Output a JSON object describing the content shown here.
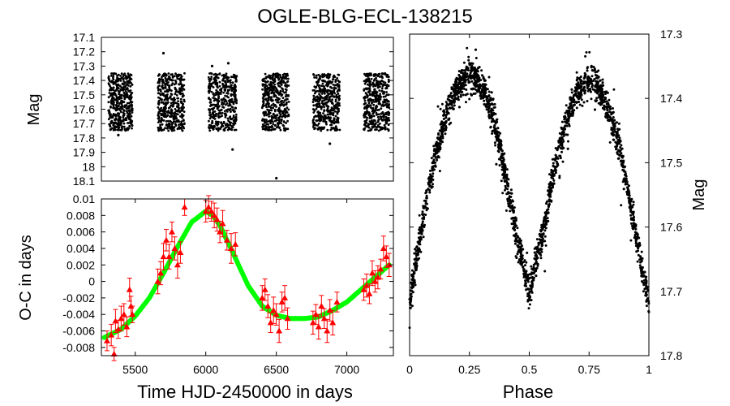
{
  "title": "OGLE-BLG-ECL-138215",
  "chart_data": [
    {
      "id": "light-curve",
      "type": "scatter",
      "ylabel": "Mag",
      "xlim": [
        5260,
        7330
      ],
      "ylim": [
        18.1,
        17.1
      ],
      "y_inverted": true,
      "yticks": [
        "17.1",
        "17.2",
        "17.3",
        "17.4",
        "17.5",
        "17.6",
        "17.7",
        "17.8",
        "17.9",
        "18",
        "18.1"
      ],
      "seasons": [
        {
          "start": 5310,
          "end": 5480,
          "mag_min": 17.35,
          "mag_max": 17.75
        },
        {
          "start": 5660,
          "end": 5850,
          "mag_min": 17.35,
          "mag_max": 17.75
        },
        {
          "start": 6020,
          "end": 6220,
          "mag_min": 17.35,
          "mag_max": 17.75
        },
        {
          "start": 6400,
          "end": 6590,
          "mag_min": 17.35,
          "mag_max": 17.75
        },
        {
          "start": 6760,
          "end": 6950,
          "mag_min": 17.35,
          "mag_max": 17.75
        },
        {
          "start": 7120,
          "end": 7300,
          "mag_min": 17.35,
          "mag_max": 17.75
        }
      ],
      "outliers": [
        {
          "x": 5700,
          "y": 17.21
        },
        {
          "x": 6160,
          "y": 17.28
        },
        {
          "x": 6190,
          "y": 17.88
        },
        {
          "x": 6500,
          "y": 18.08
        },
        {
          "x": 6880,
          "y": 17.84
        },
        {
          "x": 5380,
          "y": 17.78
        },
        {
          "x": 6045,
          "y": 17.3
        }
      ],
      "marker_color": "#000000"
    },
    {
      "id": "o-c",
      "type": "scatter",
      "xlabel": "Time HJD-2450000 in days",
      "ylabel": "O-C in days",
      "xlim": [
        5260,
        7330
      ],
      "ylim": [
        -0.009,
        0.01
      ],
      "xticks": [
        "5500",
        "6000",
        "6500",
        "7000"
      ],
      "xtick_values": [
        5500,
        6000,
        6500,
        7000
      ],
      "yticks": [
        "0.01",
        "0.008",
        "0.006",
        "0.004",
        "0.002",
        "0",
        "-0.002",
        "-0.004",
        "-0.006",
        "-0.008"
      ],
      "ytick_values": [
        0.01,
        0.008,
        0.006,
        0.004,
        0.002,
        0,
        -0.002,
        -0.004,
        -0.006,
        -0.008
      ],
      "points": [
        {
          "x": 5300,
          "y": -0.0072,
          "err": 0.0012
        },
        {
          "x": 5330,
          "y": -0.0065,
          "err": 0.0013
        },
        {
          "x": 5350,
          "y": -0.0088,
          "err": 0.0008
        },
        {
          "x": 5360,
          "y": -0.0048,
          "err": 0.0014
        },
        {
          "x": 5380,
          "y": -0.0058,
          "err": 0.0011
        },
        {
          "x": 5400,
          "y": -0.0045,
          "err": 0.0015
        },
        {
          "x": 5420,
          "y": -0.004,
          "err": 0.0013
        },
        {
          "x": 5440,
          "y": -0.0055,
          "err": 0.0012
        },
        {
          "x": 5460,
          "y": -0.001,
          "err": 0.0014
        },
        {
          "x": 5470,
          "y": -0.003,
          "err": 0.0012
        },
        {
          "x": 5480,
          "y": -0.004,
          "err": 0.001
        },
        {
          "x": 5660,
          "y": 0.0,
          "err": 0.0015
        },
        {
          "x": 5680,
          "y": 0.001,
          "err": 0.0014
        },
        {
          "x": 5700,
          "y": 0.003,
          "err": 0.0016
        },
        {
          "x": 5720,
          "y": 0.005,
          "err": 0.0013
        },
        {
          "x": 5740,
          "y": 0.003,
          "err": 0.0015
        },
        {
          "x": 5760,
          "y": 0.006,
          "err": 0.0012
        },
        {
          "x": 5780,
          "y": 0.004,
          "err": 0.0014
        },
        {
          "x": 5800,
          "y": 0.002,
          "err": 0.0016
        },
        {
          "x": 5820,
          "y": 0.0035,
          "err": 0.0013
        },
        {
          "x": 5850,
          "y": 0.009,
          "err": 0.001
        },
        {
          "x": 6000,
          "y": 0.0085,
          "err": 0.0013
        },
        {
          "x": 6020,
          "y": 0.009,
          "err": 0.0014
        },
        {
          "x": 6040,
          "y": 0.0085,
          "err": 0.0012
        },
        {
          "x": 6060,
          "y": 0.008,
          "err": 0.0015
        },
        {
          "x": 6080,
          "y": 0.0075,
          "err": 0.0014
        },
        {
          "x": 6100,
          "y": 0.006,
          "err": 0.0013
        },
        {
          "x": 6120,
          "y": 0.007,
          "err": 0.0016
        },
        {
          "x": 6150,
          "y": 0.005,
          "err": 0.0012
        },
        {
          "x": 6180,
          "y": 0.004,
          "err": 0.0018
        },
        {
          "x": 6210,
          "y": 0.0045,
          "err": 0.0014
        },
        {
          "x": 6400,
          "y": -0.002,
          "err": 0.0015
        },
        {
          "x": 6420,
          "y": -0.001,
          "err": 0.0013
        },
        {
          "x": 6440,
          "y": -0.003,
          "err": 0.0014
        },
        {
          "x": 6460,
          "y": -0.005,
          "err": 0.0012
        },
        {
          "x": 6480,
          "y": -0.0035,
          "err": 0.0016
        },
        {
          "x": 6500,
          "y": -0.004,
          "err": 0.0013
        },
        {
          "x": 6520,
          "y": -0.006,
          "err": 0.0014
        },
        {
          "x": 6540,
          "y": -0.0025,
          "err": 0.0012
        },
        {
          "x": 6560,
          "y": -0.002,
          "err": 0.0015
        },
        {
          "x": 6580,
          "y": -0.0045,
          "err": 0.0013
        },
        {
          "x": 6760,
          "y": -0.005,
          "err": 0.0014
        },
        {
          "x": 6780,
          "y": -0.004,
          "err": 0.0012
        },
        {
          "x": 6800,
          "y": -0.0055,
          "err": 0.0015
        },
        {
          "x": 6820,
          "y": -0.003,
          "err": 0.0013
        },
        {
          "x": 6840,
          "y": -0.0045,
          "err": 0.0012
        },
        {
          "x": 6860,
          "y": -0.006,
          "err": 0.0014
        },
        {
          "x": 6880,
          "y": -0.0035,
          "err": 0.0013
        },
        {
          "x": 6900,
          "y": -0.005,
          "err": 0.0015
        },
        {
          "x": 6930,
          "y": -0.0025,
          "err": 0.0012
        },
        {
          "x": 7120,
          "y": -0.001,
          "err": 0.0013
        },
        {
          "x": 7140,
          "y": -0.0005,
          "err": 0.0014
        },
        {
          "x": 7160,
          "y": -0.0015,
          "err": 0.0012
        },
        {
          "x": 7180,
          "y": 0.001,
          "err": 0.0015
        },
        {
          "x": 7200,
          "y": 0.0,
          "err": 0.0013
        },
        {
          "x": 7220,
          "y": 0.0005,
          "err": 0.0014
        },
        {
          "x": 7240,
          "y": 0.0015,
          "err": 0.0012
        },
        {
          "x": 7260,
          "y": 0.004,
          "err": 0.0015
        },
        {
          "x": 7280,
          "y": 0.003,
          "err": 0.0013
        },
        {
          "x": 7300,
          "y": 0.002,
          "err": 0.0014
        }
      ],
      "fit": {
        "x": [
          5280,
          5400,
          5500,
          5600,
          5700,
          5800,
          5900,
          6000,
          6050,
          6100,
          6200,
          6300,
          6400,
          6500,
          6600,
          6700,
          6800,
          6900,
          7000,
          7100,
          7200,
          7300
        ],
        "y": [
          -0.0068,
          -0.0058,
          -0.0042,
          -0.002,
          0.001,
          0.0042,
          0.0072,
          0.0085,
          0.008,
          0.0068,
          0.0032,
          -0.0005,
          -0.003,
          -0.0041,
          -0.0045,
          -0.0045,
          -0.0043,
          -0.0035,
          -0.0025,
          -0.001,
          0.0005,
          0.002
        ]
      },
      "point_color": "#ff0000",
      "fit_color": "#00ff00"
    },
    {
      "id": "phase-curve",
      "type": "scatter",
      "xlabel": "Phase",
      "ylabel": "Mag",
      "xlim": [
        0,
        1
      ],
      "ylim": [
        17.8,
        17.3
      ],
      "y_inverted": true,
      "xticks": [
        "0",
        "0.25",
        "0.5",
        "0.75",
        "1"
      ],
      "xtick_values": [
        0,
        0.25,
        0.5,
        0.75,
        1
      ],
      "yticks": [
        "17.3",
        "17.4",
        "17.5",
        "17.6",
        "17.7",
        "17.8"
      ],
      "ytick_values": [
        17.3,
        17.4,
        17.5,
        17.6,
        17.7,
        17.8
      ],
      "curve": {
        "x": [
          0,
          0.05,
          0.1,
          0.15,
          0.2,
          0.25,
          0.3,
          0.35,
          0.4,
          0.45,
          0.5,
          0.55,
          0.6,
          0.65,
          0.7,
          0.75,
          0.8,
          0.85,
          0.9,
          0.95,
          1
        ],
        "y": [
          17.72,
          17.6,
          17.5,
          17.43,
          17.38,
          17.36,
          17.38,
          17.43,
          17.52,
          17.62,
          17.7,
          17.62,
          17.52,
          17.44,
          17.39,
          17.37,
          17.39,
          17.44,
          17.52,
          17.62,
          17.72
        ]
      },
      "scatter_width": 0.05,
      "marker_color": "#000000"
    }
  ]
}
